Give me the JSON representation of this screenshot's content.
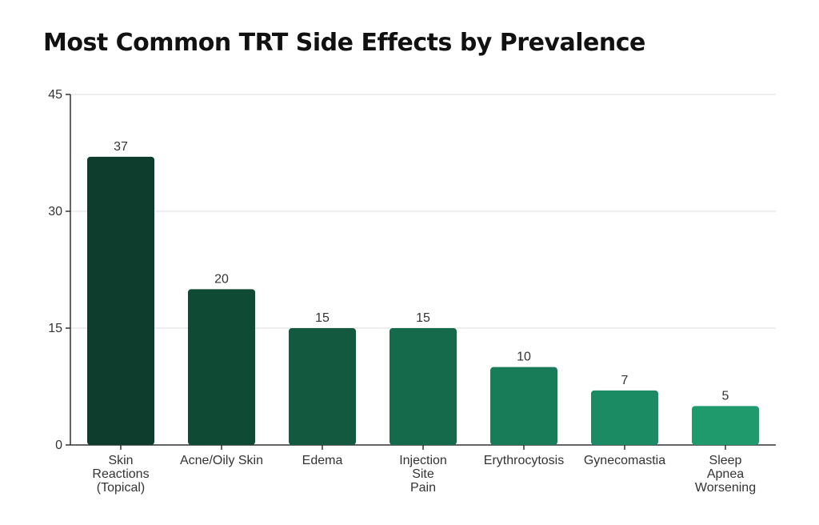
{
  "chart_data": {
    "type": "bar",
    "title": "Most Common TRT Side Effects by Prevalence",
    "xlabel": "",
    "ylabel": "",
    "ylim": [
      0,
      45
    ],
    "yticks": [
      0,
      15,
      30,
      45
    ],
    "grid": true,
    "categories": [
      "Skin Reactions (Topical)",
      "Acne/Oily Skin",
      "Edema",
      "Injection Site Pain",
      "Erythrocytosis",
      "Gynecomastia",
      "Sleep Apnea Worsening"
    ],
    "category_lines": [
      [
        "Skin",
        "Reactions",
        "(Topical)"
      ],
      [
        "Acne/Oily Skin"
      ],
      [
        "Edema"
      ],
      [
        "Injection",
        "Site",
        "Pain"
      ],
      [
        "Erythrocytosis"
      ],
      [
        "Gynecomastia"
      ],
      [
        "Sleep",
        "Apnea",
        "Worsening"
      ]
    ],
    "values": [
      37,
      20,
      15,
      15,
      10,
      7,
      5
    ],
    "colors": [
      "#0e3d2d",
      "#0f4a35",
      "#12593f",
      "#146a4b",
      "#177c57",
      "#1a8b62",
      "#1e9a6c"
    ]
  }
}
